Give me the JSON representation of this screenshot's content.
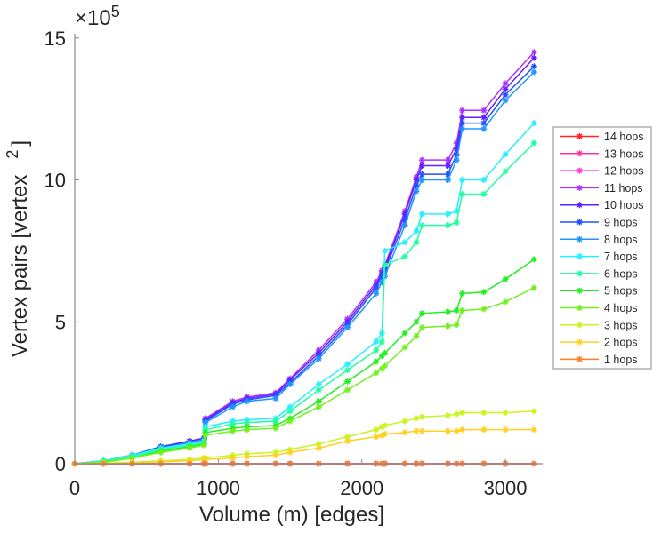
{
  "chart_data": {
    "type": "line",
    "title": "",
    "xlabel": "Volume (m) [edges]",
    "ylabel": "Vertex pairs [vertex",
    "ylabel_sup": "2",
    "ylabel_end": "]",
    "y_multiplier": "×10",
    "y_multiplier_exp": "5",
    "xlim": [
      0,
      3260
    ],
    "ylim": [
      0,
      15.15
    ],
    "xticks": [
      0,
      1000,
      2000,
      3000
    ],
    "yticks": [
      0,
      5,
      10,
      15
    ],
    "grid": false,
    "legend_position": "right",
    "marker": "asterisk",
    "x": [
      0,
      200,
      400,
      600,
      800,
      900,
      910,
      1100,
      1200,
      1400,
      1500,
      1700,
      1900,
      2100,
      2140,
      2160,
      2300,
      2380,
      2420,
      2600,
      2660,
      2700,
      2850,
      3000,
      3200
    ],
    "series": [
      {
        "name": "14 hops",
        "color": "#ff2424",
        "values": [
          0,
          0,
          0,
          0,
          0,
          0,
          0,
          0,
          0,
          0,
          0,
          0,
          0,
          0,
          0,
          0,
          0,
          0,
          0,
          0,
          0,
          0,
          0,
          0,
          0
        ]
      },
      {
        "name": "13 hops",
        "color": "#ff3399",
        "values": [
          0,
          0,
          0,
          0,
          0,
          0,
          0,
          0,
          0,
          0,
          0,
          0,
          0,
          0,
          0,
          0,
          0,
          0,
          0,
          0,
          0,
          0,
          0,
          0,
          0
        ]
      },
      {
        "name": "12 hops",
        "color": "#ff33dd",
        "values": [
          0,
          0,
          0,
          0,
          0,
          0,
          0,
          0,
          0,
          0,
          0,
          0,
          0,
          0,
          0,
          0,
          0,
          0,
          0,
          0,
          0,
          0,
          0,
          0,
          0
        ]
      },
      {
        "name": "11 hops",
        "color": "#b030ff",
        "values": [
          0,
          0.1,
          0.3,
          0.6,
          0.8,
          0.9,
          1.6,
          2.2,
          2.35,
          2.5,
          3.0,
          4.0,
          5.1,
          6.4,
          6.8,
          7.0,
          8.9,
          10.1,
          10.7,
          10.7,
          11.3,
          12.45,
          12.45,
          13.4,
          14.5
        ]
      },
      {
        "name": "10 hops",
        "color": "#6020ff",
        "values": [
          0,
          0.1,
          0.3,
          0.6,
          0.8,
          0.9,
          1.55,
          2.15,
          2.3,
          2.45,
          2.95,
          3.9,
          5.0,
          6.3,
          6.7,
          6.9,
          8.8,
          10.0,
          10.5,
          10.5,
          11.1,
          12.2,
          12.2,
          13.2,
          14.3
        ]
      },
      {
        "name": "9 hops",
        "color": "#2050ff",
        "values": [
          0,
          0.1,
          0.3,
          0.6,
          0.75,
          0.85,
          1.5,
          2.1,
          2.25,
          2.4,
          2.85,
          3.8,
          4.9,
          6.2,
          6.6,
          6.8,
          8.6,
          9.8,
          10.2,
          10.2,
          10.9,
          12.0,
          12.0,
          13.0,
          14.0
        ]
      },
      {
        "name": "8 hops",
        "color": "#2095ff",
        "values": [
          0,
          0.1,
          0.3,
          0.55,
          0.75,
          0.85,
          1.45,
          2.0,
          2.2,
          2.3,
          2.8,
          3.7,
          4.8,
          6.0,
          6.4,
          6.6,
          8.4,
          9.6,
          10.0,
          10.0,
          10.7,
          11.8,
          11.8,
          12.8,
          13.8
        ]
      },
      {
        "name": "7 hops",
        "color": "#20f0ff",
        "values": [
          0,
          0.1,
          0.3,
          0.55,
          0.7,
          0.8,
          1.3,
          1.5,
          1.55,
          1.6,
          2.0,
          2.8,
          3.5,
          4.3,
          4.6,
          7.5,
          7.8,
          8.2,
          8.8,
          8.8,
          8.9,
          10.0,
          10.0,
          10.9,
          12.0
        ]
      },
      {
        "name": "6 hops",
        "color": "#20ffa0",
        "values": [
          0,
          0.1,
          0.25,
          0.5,
          0.65,
          0.75,
          1.2,
          1.4,
          1.45,
          1.5,
          1.85,
          2.6,
          3.3,
          4.0,
          4.3,
          7.0,
          7.3,
          7.8,
          8.4,
          8.4,
          8.5,
          9.5,
          9.5,
          10.3,
          11.3
        ]
      },
      {
        "name": "5 hops",
        "color": "#20f020",
        "values": [
          0,
          0.05,
          0.2,
          0.45,
          0.6,
          0.7,
          1.1,
          1.25,
          1.3,
          1.35,
          1.6,
          2.2,
          2.9,
          3.6,
          3.8,
          3.9,
          4.6,
          5.0,
          5.3,
          5.35,
          5.4,
          6.0,
          6.05,
          6.5,
          7.2
        ]
      },
      {
        "name": "4 hops",
        "color": "#70f020",
        "values": [
          0,
          0.05,
          0.2,
          0.4,
          0.55,
          0.65,
          1.0,
          1.15,
          1.2,
          1.25,
          1.5,
          2.0,
          2.6,
          3.2,
          3.35,
          3.45,
          4.1,
          4.5,
          4.8,
          4.85,
          4.9,
          5.4,
          5.45,
          5.7,
          6.2
        ]
      },
      {
        "name": "3 hops",
        "color": "#c8f520",
        "values": [
          0,
          0.02,
          0.05,
          0.1,
          0.15,
          0.2,
          0.2,
          0.3,
          0.35,
          0.4,
          0.5,
          0.7,
          0.95,
          1.2,
          1.3,
          1.35,
          1.5,
          1.6,
          1.65,
          1.7,
          1.75,
          1.8,
          1.8,
          1.8,
          1.85
        ]
      },
      {
        "name": "2 hops",
        "color": "#ffd020",
        "values": [
          0,
          0.01,
          0.03,
          0.07,
          0.1,
          0.15,
          0.15,
          0.2,
          0.25,
          0.3,
          0.4,
          0.55,
          0.8,
          0.95,
          1.0,
          1.05,
          1.1,
          1.15,
          1.15,
          1.15,
          1.15,
          1.2,
          1.2,
          1.2,
          1.2
        ]
      },
      {
        "name": "1 hops",
        "color": "#ff8020",
        "values": [
          0,
          0,
          0,
          0,
          0,
          0,
          0,
          0,
          0,
          0,
          0,
          0,
          0,
          0,
          0,
          0,
          0,
          0,
          0,
          0,
          0,
          0,
          0,
          0,
          0
        ]
      }
    ]
  }
}
